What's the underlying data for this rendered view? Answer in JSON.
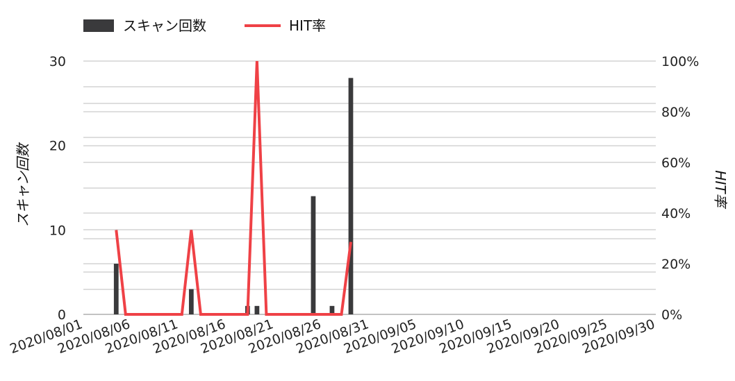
{
  "chart_data": {
    "type": "bar+line",
    "legend": [
      {
        "label": "スキャン回数",
        "kind": "bar",
        "color": "#3a3a3c"
      },
      {
        "label": "HIT率",
        "kind": "line",
        "color": "#ef4146"
      }
    ],
    "legend_position": "top-left",
    "xlabel": "",
    "ylabel_left": "スキャン回数",
    "ylabel_right": "HIT率",
    "x_tick_labels": [
      "2020/08/01",
      "2020/08/06",
      "2020/08/11",
      "2020/08/16",
      "2020/08/21",
      "2020/08/26",
      "2020/08/31",
      "2020/09/05",
      "2020/09/10",
      "2020/09/15",
      "2020/09/20",
      "2020/09/25",
      "2020/09/30"
    ],
    "y_left_ticks": [
      "0",
      "10",
      "20",
      "30"
    ],
    "y_right_ticks": [
      "0%",
      "20%",
      "40%",
      "60%",
      "80%",
      "100%"
    ],
    "y_left_range": [
      0,
      30
    ],
    "y_right_range": [
      0,
      100
    ],
    "grid": true,
    "start_date": "2020-08-01",
    "num_days": 61,
    "scan_series": {
      "name": "スキャン回数",
      "points": [
        {
          "date": "2020-08-04",
          "value": 6
        },
        {
          "date": "2020-08-12",
          "value": 3
        },
        {
          "date": "2020-08-18",
          "value": 1
        },
        {
          "date": "2020-08-19",
          "value": 1
        },
        {
          "date": "2020-08-25",
          "value": 14
        },
        {
          "date": "2020-08-27",
          "value": 1
        },
        {
          "date": "2020-08-29",
          "value": 28
        }
      ]
    },
    "hit_series": {
      "name": "HIT率",
      "points": [
        {
          "date": "2020-08-04",
          "value": 33.3
        },
        {
          "date": "2020-08-05",
          "value": 0
        },
        {
          "date": "2020-08-11",
          "value": 0
        },
        {
          "date": "2020-08-12",
          "value": 33.3
        },
        {
          "date": "2020-08-13",
          "value": 0
        },
        {
          "date": "2020-08-18",
          "value": 0
        },
        {
          "date": "2020-08-19",
          "value": 100
        },
        {
          "date": "2020-08-20",
          "value": 0
        },
        {
          "date": "2020-08-28",
          "value": 0
        },
        {
          "date": "2020-08-29",
          "value": 28.6
        }
      ]
    }
  }
}
